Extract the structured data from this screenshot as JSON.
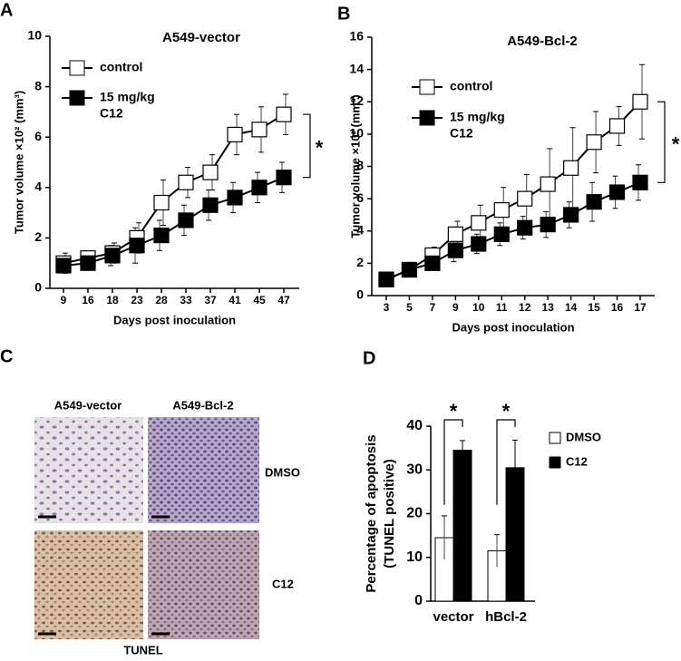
{
  "panel_labels": [
    "A",
    "B",
    "C",
    "D"
  ],
  "chart_data": [
    {
      "type": "line",
      "title": "A549-vector",
      "xlabel": "Days post inoculation",
      "ylabel": "Tumor volume ×10² (mm³)",
      "categories": [
        "9",
        "16",
        "18",
        "23",
        "28",
        "33",
        "37",
        "41",
        "45",
        "47"
      ],
      "ylim": [
        0,
        10
      ],
      "yticks": [
        0,
        2,
        4,
        6,
        8,
        10
      ],
      "series": [
        {
          "name": [
            "control"
          ],
          "color": "#ffffff",
          "values": [
            1.0,
            1.2,
            1.4,
            2.0,
            3.4,
            4.2,
            4.6,
            6.1,
            6.3,
            6.9
          ],
          "errors": [
            0.4,
            0.2,
            0.4,
            0.6,
            0.9,
            0.6,
            0.7,
            0.8,
            0.9,
            0.8
          ]
        },
        {
          "name": [
            "15 mg/kg",
            "C12"
          ],
          "color": "#000000",
          "values": [
            0.9,
            1.0,
            1.3,
            1.7,
            2.1,
            2.7,
            3.3,
            3.6,
            4.0,
            4.4
          ],
          "errors": [
            0.2,
            0.2,
            0.4,
            0.7,
            0.6,
            0.6,
            0.6,
            0.6,
            0.6,
            0.6
          ]
        }
      ],
      "annotations": [
        "*"
      ]
    },
    {
      "type": "line",
      "title": "A549-Bcl-2",
      "xlabel": "Days post inoculation",
      "ylabel": "Tumor volume ×10² (mm³)",
      "categories": [
        "3",
        "5",
        "7",
        "9",
        "10",
        "11",
        "12",
        "13",
        "14",
        "15",
        "16",
        "17"
      ],
      "ylim": [
        0,
        16
      ],
      "yticks": [
        0,
        2,
        4,
        6,
        8,
        10,
        12,
        14,
        16
      ],
      "series": [
        {
          "name": [
            "control"
          ],
          "color": "#ffffff",
          "values": [
            1.0,
            1.6,
            2.5,
            3.8,
            4.5,
            5.3,
            6.0,
            6.9,
            7.9,
            9.5,
            10.5,
            12.0
          ],
          "errors": [
            0.2,
            0.4,
            0.5,
            0.8,
            1.1,
            1.4,
            1.5,
            2.2,
            2.5,
            1.9,
            1.2,
            2.3
          ]
        },
        {
          "name": [
            "15 mg/kg",
            "C12"
          ],
          "color": "#000000",
          "values": [
            1.0,
            1.6,
            2.0,
            2.8,
            3.2,
            3.8,
            4.2,
            4.4,
            5.0,
            5.8,
            6.4,
            7.0
          ],
          "errors": [
            0.2,
            0.3,
            0.4,
            0.7,
            0.6,
            0.7,
            0.7,
            0.8,
            0.8,
            1.2,
            1.0,
            1.1
          ]
        }
      ],
      "annotations": [
        "*"
      ]
    },
    {
      "type": "bar",
      "ylabel": [
        "Percentage of apoptosis",
        "(TUNEL positive)"
      ],
      "categories": [
        "vector",
        "hBcl-2"
      ],
      "ylim": [
        0,
        40
      ],
      "yticks": [
        0,
        10,
        20,
        30,
        40
      ],
      "series": [
        {
          "name": [
            "DMSO"
          ],
          "color": "#ffffff",
          "values": [
            14.5,
            11.5
          ],
          "errors": [
            5.0,
            3.7
          ]
        },
        {
          "name": [
            "C12"
          ],
          "color": "#000000",
          "values": [
            34.5,
            30.5
          ],
          "errors": [
            2.2,
            6.3
          ]
        }
      ],
      "annotations": [
        "*",
        "*"
      ]
    }
  ],
  "micrographs": {
    "columns": [
      "A549-vector",
      "A549-Bcl-2"
    ],
    "rows": [
      "DMSO",
      "C12"
    ],
    "caption": "TUNEL"
  }
}
